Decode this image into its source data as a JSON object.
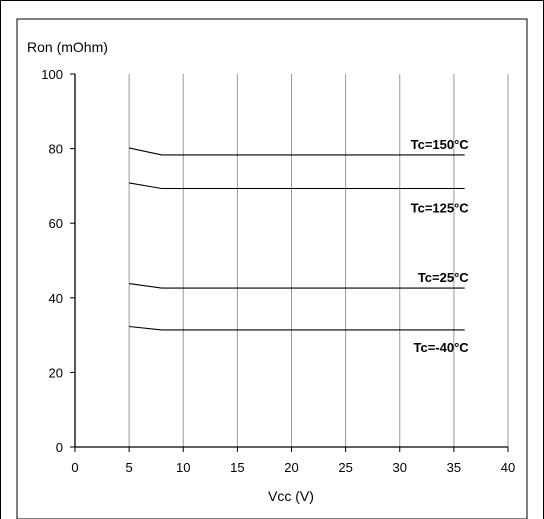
{
  "chart_data": {
    "type": "line",
    "title": "",
    "xlabel": "Vcc (V)",
    "ylabel": "Ron (mOhm)",
    "xlim": [
      0,
      40
    ],
    "ylim": [
      0,
      100
    ],
    "x_ticks": [
      0,
      5,
      10,
      15,
      20,
      25,
      30,
      35,
      40
    ],
    "y_ticks": [
      0,
      20,
      40,
      60,
      80,
      100
    ],
    "grid": "vertical",
    "legend": "none",
    "series": [
      {
        "name": "Tc=150°C",
        "points": [
          [
            5,
            80.2
          ],
          [
            8,
            78.3
          ],
          [
            36,
            78.3
          ]
        ]
      },
      {
        "name": "Tc=125°C",
        "points": [
          [
            5,
            70.8
          ],
          [
            8,
            69.3
          ],
          [
            36,
            69.3
          ]
        ]
      },
      {
        "name": "Tc=25°C",
        "points": [
          [
            5,
            43.8
          ],
          [
            8,
            42.6
          ],
          [
            36,
            42.6
          ]
        ]
      },
      {
        "name": "Tc=-40°C",
        "points": [
          [
            5,
            32.3
          ],
          [
            8,
            31.4
          ],
          [
            36,
            31.4
          ]
        ]
      }
    ]
  }
}
